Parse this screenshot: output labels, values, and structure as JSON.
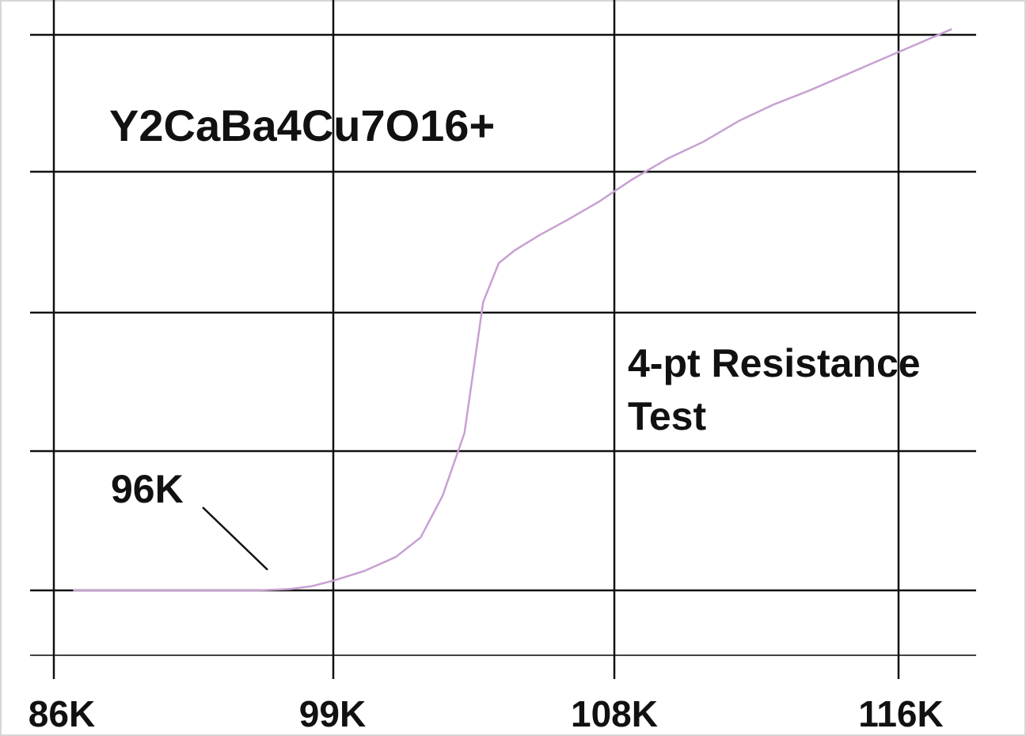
{
  "chart_data": {
    "type": "line",
    "title": "Y2CaBa4Cu7O16+",
    "xlabel": "",
    "ylabel": "",
    "x_tick_labels": [
      "86K",
      "99K",
      "108K",
      "116K"
    ],
    "y_axis_labels_visible": false,
    "grid": true,
    "series": [
      {
        "color": "#c8a0d2",
        "x": [
          86.9,
          88.5,
          89.5,
          90.5,
          91.5,
          92.5,
          94.0,
          95.5,
          97.0,
          98.0,
          99.0,
          100.0,
          101.0,
          101.8,
          102.5,
          103.2,
          103.8,
          104.3,
          104.8,
          105.6,
          106.5,
          107.5,
          108.5,
          109.5,
          110.5,
          111.5,
          112.5,
          113.5,
          114.5,
          115.5,
          116.5,
          117.5
        ],
        "y": [
          0.0,
          0.0,
          0.0,
          0.0,
          0.0,
          0.0,
          0.0,
          0.0,
          0.01,
          0.03,
          0.07,
          0.14,
          0.24,
          0.38,
          0.68,
          1.13,
          2.07,
          2.35,
          2.44,
          2.55,
          2.66,
          2.79,
          2.95,
          3.1,
          3.22,
          3.37,
          3.49,
          3.59,
          3.7,
          3.81,
          3.92,
          4.03
        ]
      }
    ],
    "annotations": [
      {
        "text": "96K",
        "x": 96.2,
        "y": 0.0
      },
      {
        "text": "4-pt Resistance",
        "line": 1
      },
      {
        "text": "Test",
        "line": 2
      }
    ]
  }
}
